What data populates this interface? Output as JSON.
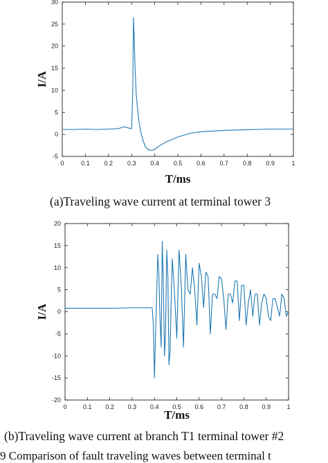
{
  "chart_data": [
    {
      "type": "line",
      "caption": "(a)Traveling wave current at terminal tower 3",
      "xlabel": "T/ms",
      "ylabel": "I/A",
      "xlim": [
        0,
        1
      ],
      "ylim": [
        -5,
        30
      ],
      "xticks": [
        "0",
        "0.1",
        "0.2",
        "0.3",
        "0.4",
        "0.5",
        "0.6",
        "0.7",
        "0.8",
        "0.9",
        "1"
      ],
      "yticks": [
        "-5",
        "0",
        "5",
        "10",
        "15",
        "20",
        "25",
        "30"
      ],
      "line_color": "#1f77b4",
      "x": [
        0,
        0.05,
        0.1,
        0.15,
        0.2,
        0.24,
        0.27,
        0.29,
        0.3,
        0.305,
        0.308,
        0.311,
        0.315,
        0.32,
        0.33,
        0.34,
        0.35,
        0.36,
        0.37,
        0.38,
        0.39,
        0.4,
        0.42,
        0.45,
        0.5,
        0.55,
        0.6,
        0.7,
        0.8,
        0.9,
        1.0
      ],
      "y": [
        1.1,
        1.1,
        1.2,
        1.1,
        1.2,
        1.3,
        1.7,
        1.4,
        1.3,
        10,
        26.5,
        22,
        15,
        9,
        3.5,
        0.5,
        -1.5,
        -2.8,
        -3.4,
        -3.6,
        -3.6,
        -3.4,
        -2.6,
        -1.7,
        -0.6,
        0.2,
        0.6,
        0.9,
        1.05,
        1.2,
        1.2
      ]
    },
    {
      "type": "line",
      "caption": "(b)Traveling wave current at branch T1 terminal tower #2",
      "xlabel": "T/ms",
      "ylabel": "I/A",
      "xlim": [
        0,
        1
      ],
      "ylim": [
        -20,
        20
      ],
      "xticks": [
        "0",
        "0.1",
        "0.2",
        "0.3",
        "0.4",
        "0.5",
        "0.6",
        "0.7",
        "0.8",
        "0.9",
        "1"
      ],
      "yticks": [
        "-20",
        "-15",
        "-10",
        "-5",
        "0",
        "5",
        "10",
        "15",
        "20"
      ],
      "line_color": "#1f77b4",
      "x": [
        0,
        0.1,
        0.2,
        0.3,
        0.38,
        0.39,
        0.395,
        0.4,
        0.405,
        0.41,
        0.415,
        0.42,
        0.425,
        0.43,
        0.435,
        0.44,
        0.445,
        0.45,
        0.455,
        0.46,
        0.465,
        0.47,
        0.475,
        0.48,
        0.49,
        0.5,
        0.51,
        0.52,
        0.53,
        0.54,
        0.55,
        0.56,
        0.57,
        0.58,
        0.59,
        0.6,
        0.61,
        0.62,
        0.63,
        0.64,
        0.65,
        0.66,
        0.67,
        0.68,
        0.69,
        0.7,
        0.71,
        0.72,
        0.73,
        0.74,
        0.75,
        0.76,
        0.77,
        0.78,
        0.79,
        0.8,
        0.81,
        0.82,
        0.83,
        0.84,
        0.85,
        0.86,
        0.87,
        0.88,
        0.89,
        0.9,
        0.91,
        0.92,
        0.93,
        0.94,
        0.95,
        0.96,
        0.97,
        0.98,
        0.99,
        1.0
      ],
      "y": [
        0.8,
        0.8,
        0.8,
        0.9,
        0.9,
        0.9,
        -3,
        -15,
        -5,
        4,
        13,
        8,
        -2,
        -8,
        16,
        6,
        -10,
        -4,
        14,
        8,
        -12,
        -9,
        3,
        12,
        4,
        -6,
        14,
        6,
        -8,
        13,
        5,
        4,
        10,
        5,
        -3,
        11,
        8,
        1,
        9,
        8,
        -5,
        4,
        4,
        3,
        8,
        7.5,
        3,
        -4,
        4,
        4,
        2,
        7,
        7,
        -2,
        6,
        6,
        -3,
        2,
        5,
        -1,
        4,
        4,
        -3,
        2,
        4,
        3,
        -1,
        -2,
        3,
        3,
        1,
        -1,
        4,
        3,
        -1,
        0
      ]
    }
  ],
  "figure_caption": "9    Comparison of fault traveling waves between terminal t"
}
